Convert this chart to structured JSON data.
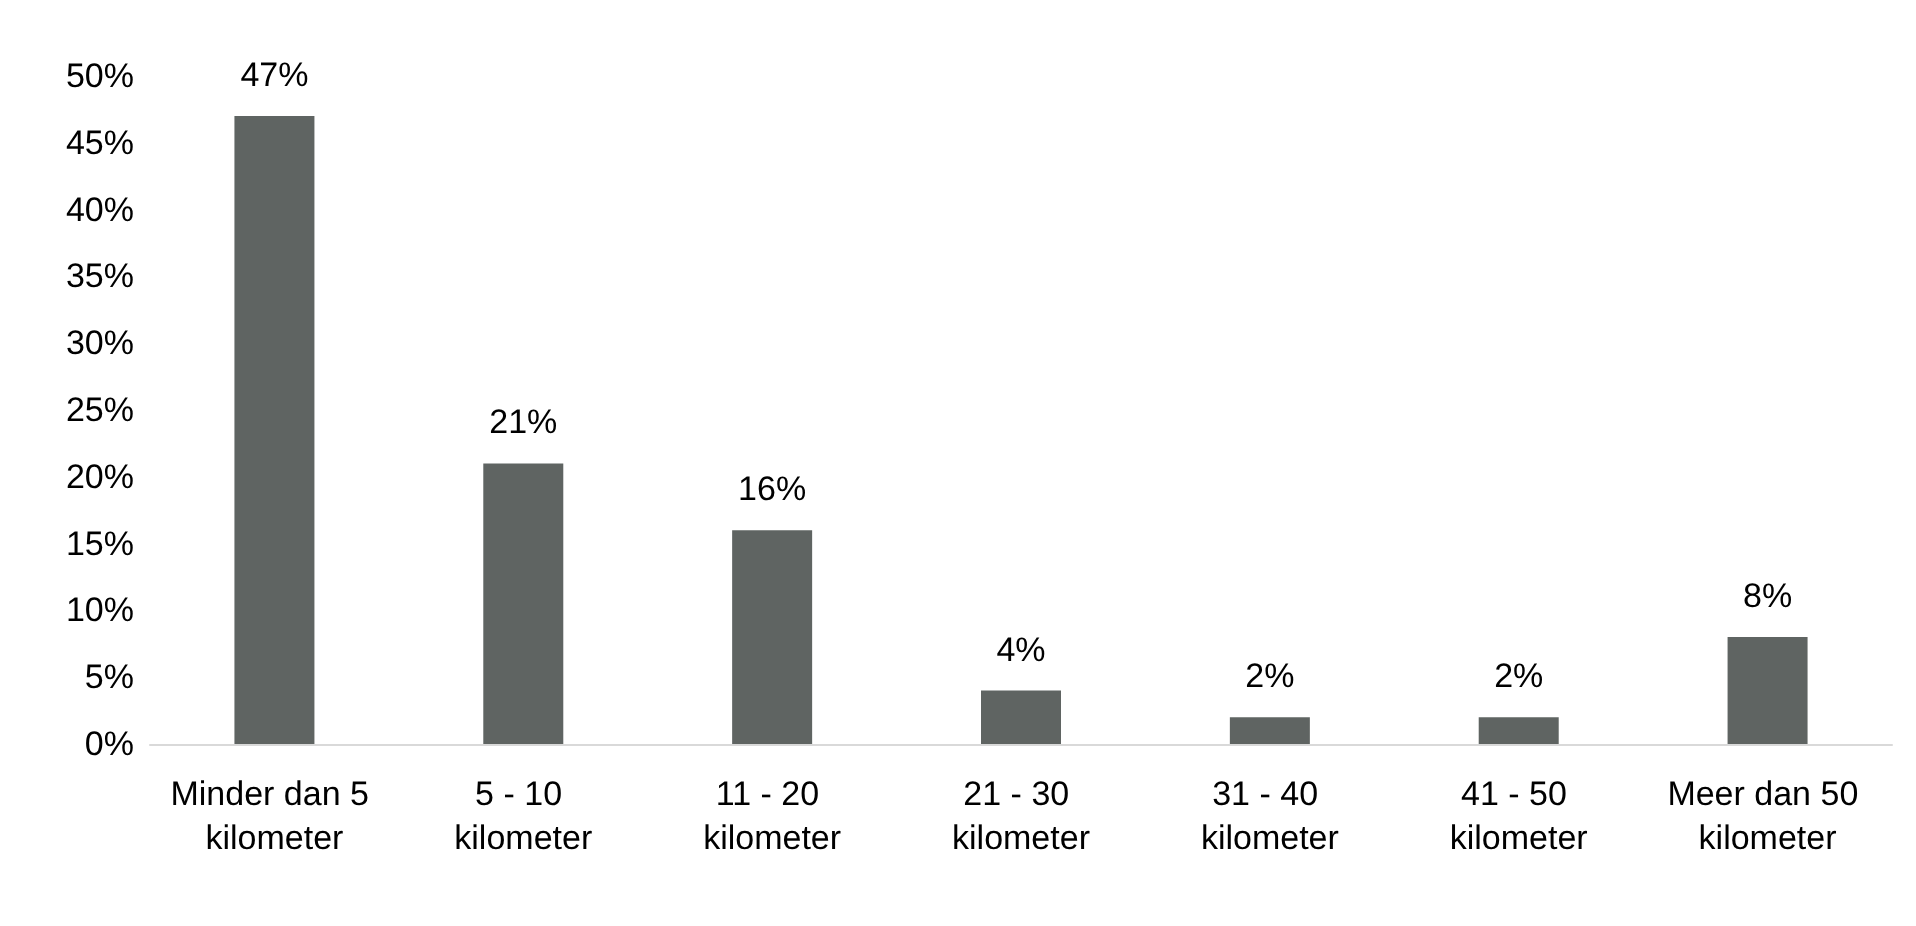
{
  "chart_data": {
    "type": "bar",
    "categories": [
      "Minder dan 5 kilometer",
      "5 - 10 kilometer",
      "11 - 20 kilometer",
      "21 - 30 kilometer",
      "31 - 40 kilometer",
      "41 - 50 kilometer",
      "Meer dan 50 kilometer"
    ],
    "values": [
      47,
      21,
      16,
      4,
      2,
      2,
      8
    ],
    "value_labels": [
      "47%",
      "21%",
      "16%",
      "4%",
      "2%",
      "2%",
      "8%"
    ],
    "color": "#5f6462",
    "ylim": [
      0,
      50
    ],
    "yticks": [
      {
        "value": 0,
        "label": "0%"
      },
      {
        "value": 5,
        "label": "5%"
      },
      {
        "value": 10,
        "label": "10%"
      },
      {
        "value": 15,
        "label": "15%"
      },
      {
        "value": 20,
        "label": "20%"
      },
      {
        "value": 25,
        "label": "25%"
      },
      {
        "value": 30,
        "label": "30%"
      },
      {
        "value": 35,
        "label": "35%"
      },
      {
        "value": 40,
        "label": "40%"
      },
      {
        "value": 45,
        "label": "45%"
      },
      {
        "value": 50,
        "label": "50%"
      }
    ],
    "grid": false
  }
}
